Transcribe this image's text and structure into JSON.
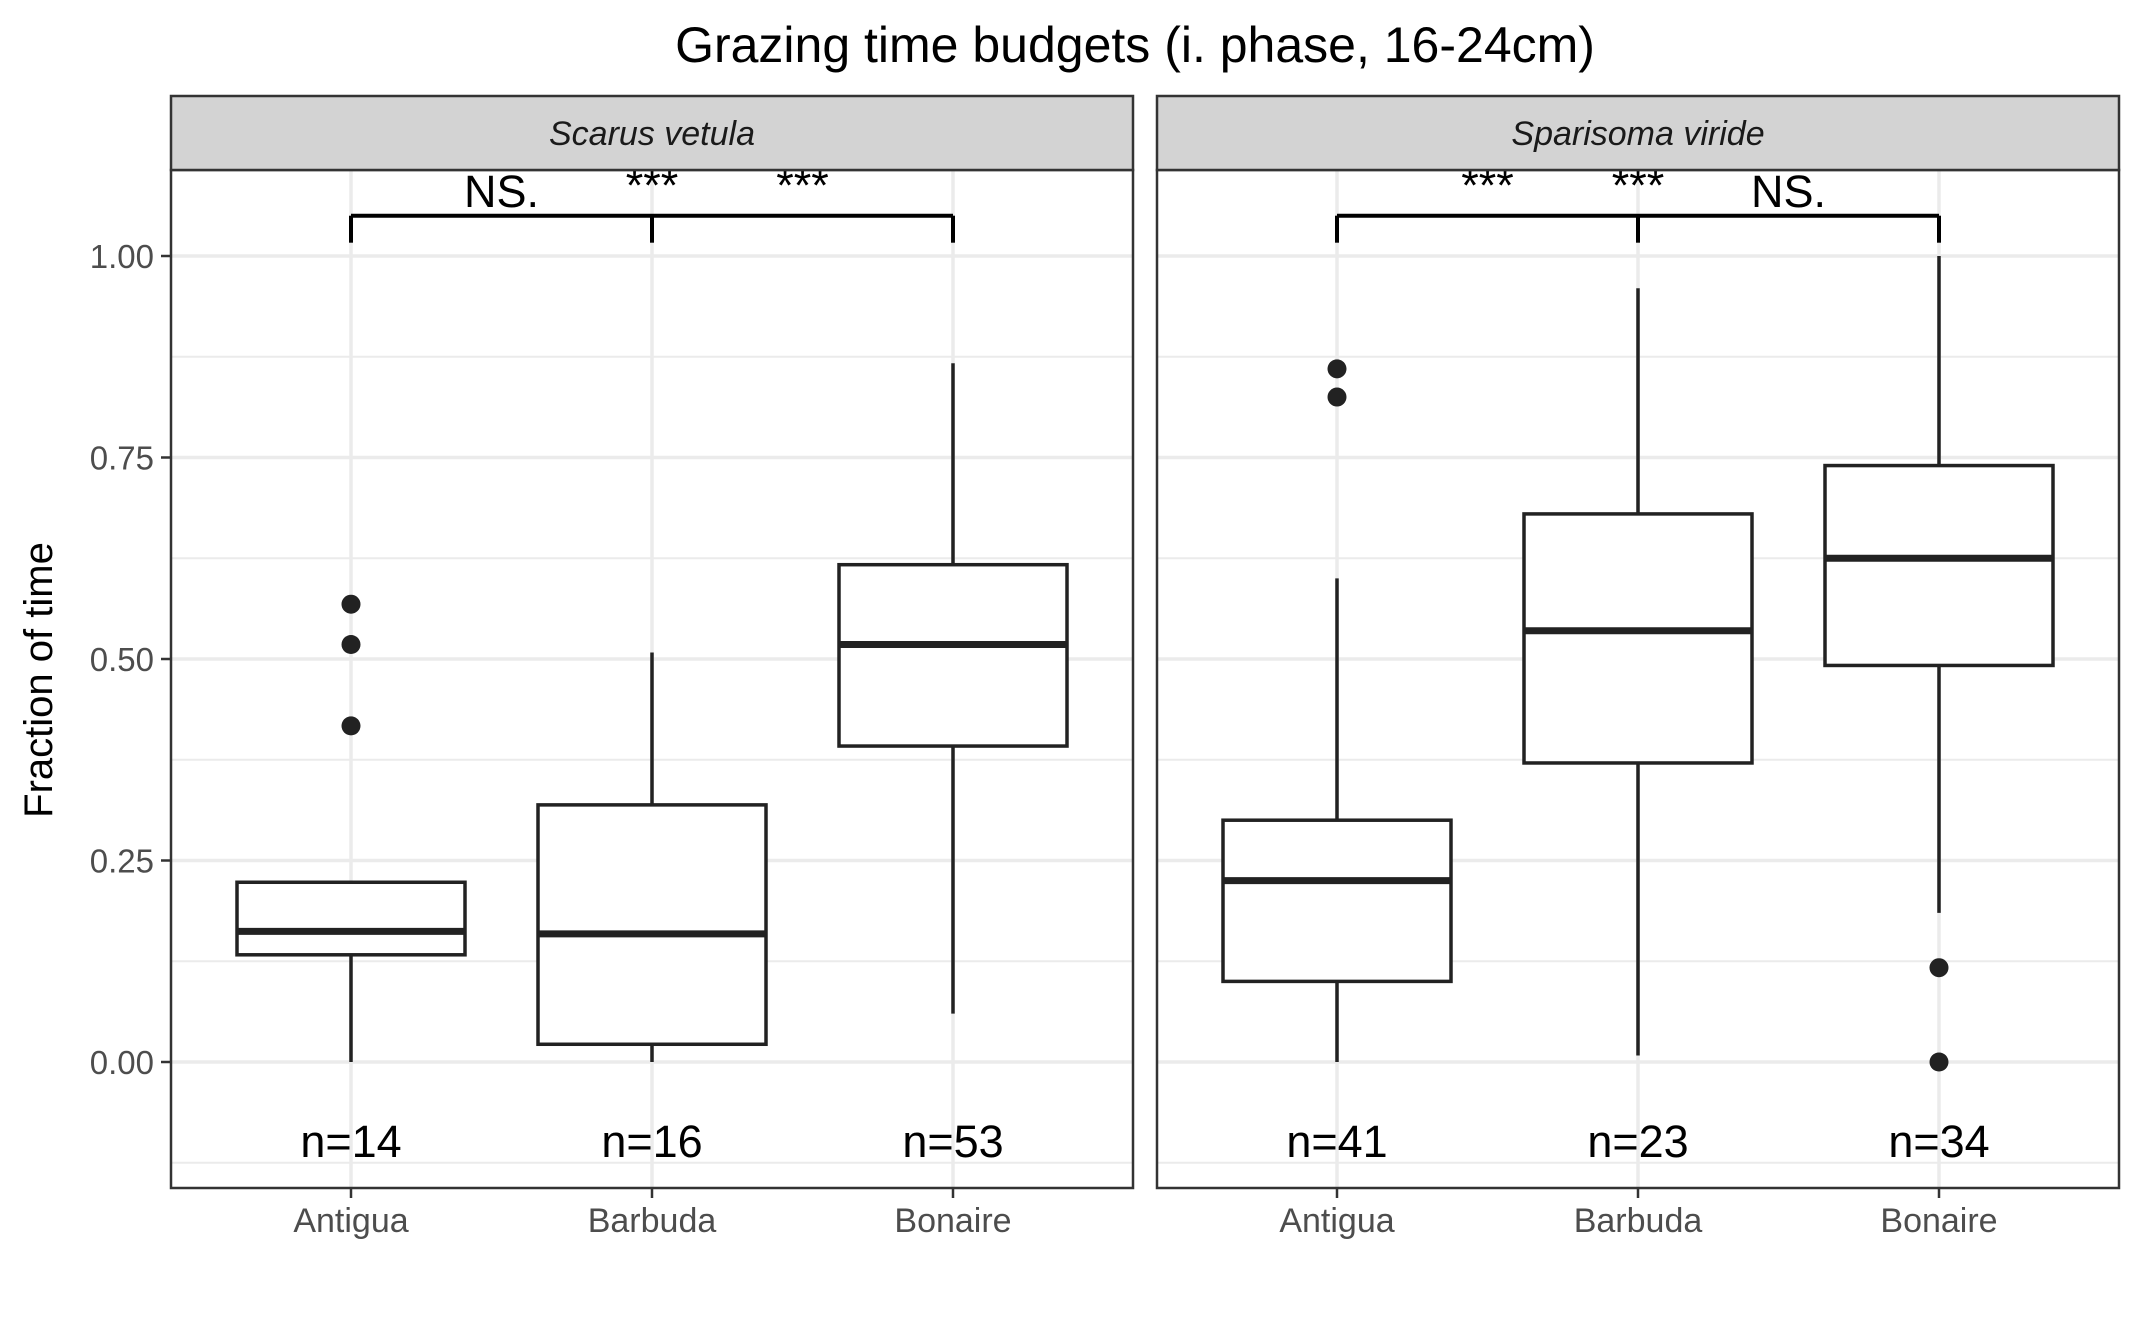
{
  "chart_data": {
    "type": "boxplot",
    "title": "Grazing time budgets (i. phase, 16-24cm)",
    "ylabel": "Fraction of time",
    "xlabel": "",
    "ylim": [
      -0.155,
      1.115
    ],
    "yticks": [
      0.0,
      0.25,
      0.5,
      0.75,
      1.0
    ],
    "ytick_labels": [
      "0.00",
      "0.25",
      "0.50",
      "0.75",
      "1.00"
    ],
    "categories": [
      "Antigua",
      "Barbuda",
      "Bonaire"
    ],
    "grid": true,
    "colors": {
      "box": "#222222",
      "panel_border": "#333333",
      "strip_fill": "#d3d3d3",
      "grid": "#ebebeb"
    },
    "panels": [
      {
        "strip": "Scarus vetula",
        "boxes": [
          {
            "category": "Antigua",
            "whisker_low": 0.0,
            "q1": 0.133,
            "median": 0.162,
            "q3": 0.223,
            "whisker_high": 0.223,
            "outliers": [
              0.417,
              0.518,
              0.568
            ],
            "n_label": "n=14"
          },
          {
            "category": "Barbuda",
            "whisker_low": 0.0,
            "q1": 0.022,
            "median": 0.159,
            "q3": 0.319,
            "whisker_high": 0.508,
            "outliers": [],
            "n_label": "n=16"
          },
          {
            "category": "Bonaire",
            "whisker_low": 0.06,
            "q1": 0.392,
            "median": 0.518,
            "q3": 0.617,
            "whisker_high": 0.867,
            "outliers": [],
            "n_label": "n=53"
          }
        ],
        "significance": [
          "NS.",
          "***",
          "***"
        ]
      },
      {
        "strip": "Sparisoma viride",
        "boxes": [
          {
            "category": "Antigua",
            "whisker_low": 0.0,
            "q1": 0.1,
            "median": 0.225,
            "q3": 0.3,
            "whisker_high": 0.6,
            "outliers": [
              0.825,
              0.86
            ],
            "n_label": "n=41"
          },
          {
            "category": "Barbuda",
            "whisker_low": 0.008,
            "q1": 0.371,
            "median": 0.535,
            "q3": 0.68,
            "whisker_high": 0.96,
            "outliers": [],
            "n_label": "n=23"
          },
          {
            "category": "Bonaire",
            "whisker_low": 0.185,
            "q1": 0.492,
            "median": 0.625,
            "q3": 0.74,
            "whisker_high": 1.0,
            "outliers": [
              0.0,
              0.117
            ],
            "n_label": "n=34"
          }
        ],
        "significance": [
          "***",
          "***",
          "NS."
        ]
      }
    ]
  }
}
